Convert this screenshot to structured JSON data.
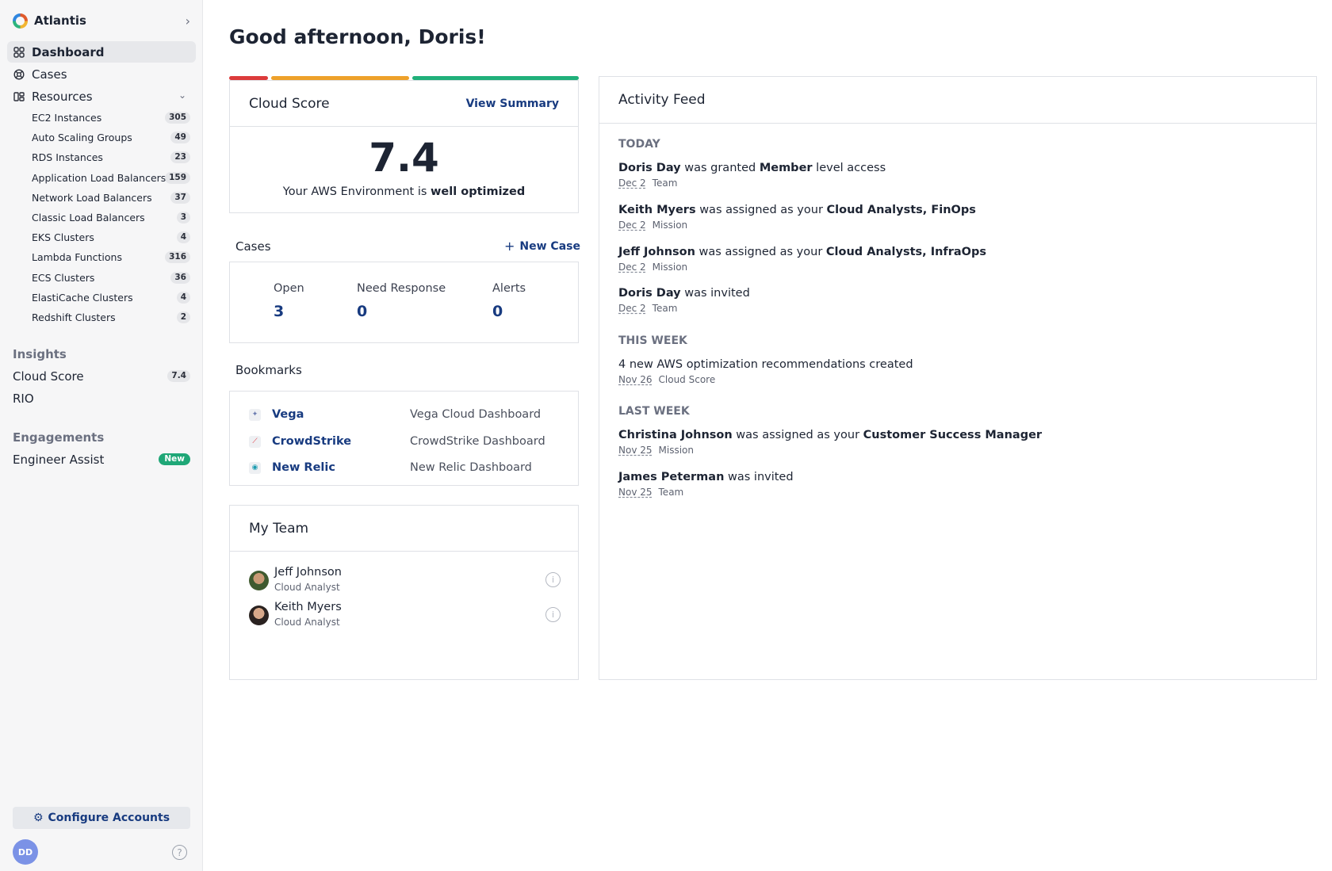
{
  "org": {
    "name": "Atlantis"
  },
  "nav": {
    "dashboard": "Dashboard",
    "cases": "Cases",
    "resources": "Resources"
  },
  "resources": [
    {
      "label": "EC2 Instances",
      "count": "305"
    },
    {
      "label": "Auto Scaling Groups",
      "count": "49"
    },
    {
      "label": "RDS Instances",
      "count": "23"
    },
    {
      "label": "Application Load Balancers",
      "count": "159"
    },
    {
      "label": "Network Load Balancers",
      "count": "37"
    },
    {
      "label": "Classic Load Balancers",
      "count": "3"
    },
    {
      "label": "EKS Clusters",
      "count": "4"
    },
    {
      "label": "Lambda Functions",
      "count": "316"
    },
    {
      "label": "ECS Clusters",
      "count": "36"
    },
    {
      "label": "ElastiCache Clusters",
      "count": "4"
    },
    {
      "label": "Redshift Clusters",
      "count": "2"
    }
  ],
  "insights": {
    "heading": "Insights",
    "cloud_score": "Cloud Score",
    "cloud_score_badge": "7.4",
    "rio": "RIO"
  },
  "engagements": {
    "heading": "Engagements",
    "engineer_assist": "Engineer Assist",
    "badge": "New"
  },
  "footer": {
    "configure": "Configure Accounts",
    "avatar": "DD",
    "help": "?"
  },
  "greeting": "Good afternoon, Doris!",
  "score": {
    "title": "Cloud Score",
    "link": "View Summary",
    "value": "7.4",
    "text_pre": "Your AWS Environment is",
    "text_bold": "well optimized",
    "bar_colors": [
      "#dc3b3b",
      "#eea12a",
      "#20b07a"
    ]
  },
  "cases": {
    "title": "Cases",
    "new_case": "New Case",
    "open_label": "Open",
    "open_value": "3",
    "need_label": "Need Response",
    "need_value": "0",
    "alerts_label": "Alerts",
    "alerts_value": "0"
  },
  "bookmarks": {
    "title": "Bookmarks",
    "items": [
      {
        "name": "Vega",
        "desc": "Vega Cloud Dashboard"
      },
      {
        "name": "CrowdStrike",
        "desc": "CrowdStrike Dashboard"
      },
      {
        "name": "New Relic",
        "desc": "New Relic Dashboard"
      }
    ]
  },
  "team": {
    "title": "My Team",
    "members": [
      {
        "name": "Jeff Johnson",
        "role": "Cloud Analyst"
      },
      {
        "name": "Keith Myers",
        "role": "Cloud Analyst"
      }
    ]
  },
  "feed": {
    "title": "Activity Feed",
    "today": "TODAY",
    "this_week": "THIS WEEK",
    "last_week": "LAST WEEK",
    "items": [
      {
        "who": "Doris Day",
        "mid": " was granted ",
        "what": "Member",
        "tail": " level access",
        "date": "Dec 2",
        "tag": "Team"
      },
      {
        "who": "Keith Myers",
        "mid": " was assigned as your ",
        "what": "Cloud Analysts, FinOps",
        "tail": "",
        "date": "Dec 2",
        "tag": "Mission"
      },
      {
        "who": "Jeff Johnson",
        "mid": " was assigned as your ",
        "what": "Cloud Analysts, InfraOps",
        "tail": "",
        "date": "Dec 2",
        "tag": "Mission"
      },
      {
        "who": "Doris Day",
        "mid": " was invited",
        "what": "",
        "tail": "",
        "date": "Dec 2",
        "tag": "Team"
      },
      {
        "who": "",
        "mid": "4 new AWS optimization recommendations created",
        "what": "",
        "tail": "",
        "date": "Nov 26",
        "tag": "Cloud Score"
      },
      {
        "who": "Christina Johnson",
        "mid": " was assigned as your ",
        "what": "Customer Success Manager",
        "tail": "",
        "date": "Nov 25",
        "tag": "Mission"
      },
      {
        "who": "James Peterman",
        "mid": " was invited",
        "what": "",
        "tail": "",
        "date": "Nov 25",
        "tag": "Team"
      }
    ]
  }
}
